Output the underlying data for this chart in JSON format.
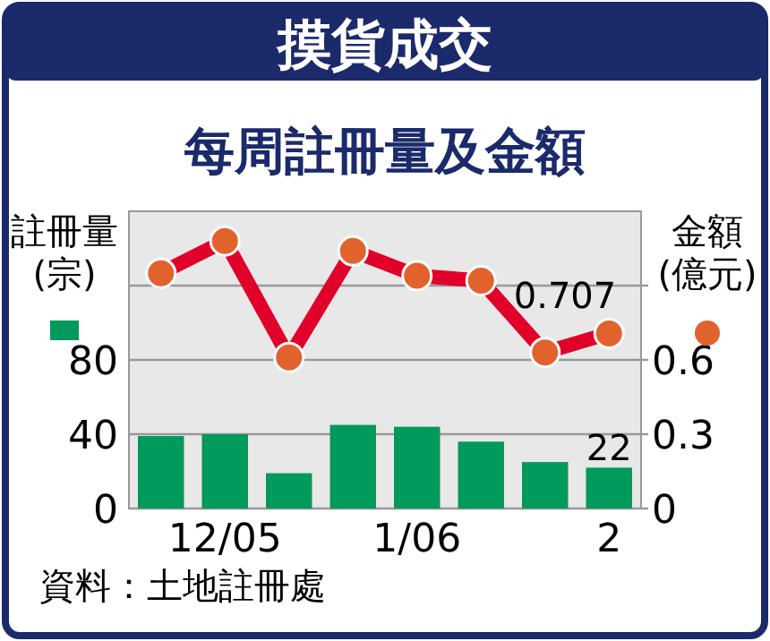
{
  "chart_data": {
    "type": "bar",
    "title": "摸貨成交",
    "subtitle": "每周註冊量及金額",
    "ylabel": "註冊量\n(宗)",
    "y2label": "金額\n(億元)",
    "categories": [
      null,
      "12/05",
      null,
      null,
      "1/06",
      null,
      null,
      "2"
    ],
    "series": [
      {
        "color": "#009a5c",
        "values": [
          39,
          40,
          19,
          45,
          44,
          36,
          25,
          22
        ],
        "value_labels": [
          null,
          null,
          null,
          null,
          null,
          null,
          null,
          "22"
        ]
      },
      {
        "type": "line",
        "axis": "y2",
        "color": "#e0002a",
        "marker": "circle",
        "values": [
          0.95,
          1.08,
          0.61,
          1.04,
          0.94,
          0.92,
          0.63,
          0.707
        ],
        "value_labels": [
          null,
          null,
          null,
          null,
          null,
          null,
          null,
          "0.707"
        ]
      }
    ],
    "ylim": [
      0,
      160
    ],
    "yticks": [
      0,
      40,
      80,
      {
        "value": 120,
        "label": null
      }
    ],
    "y2lim": [
      0,
      1.2
    ],
    "y2ticks": [
      0,
      0.3,
      0.6,
      {
        "value": 0.9,
        "label": null
      }
    ],
    "grid": "y",
    "annotations": [
      "資料：土地註冊處"
    ]
  }
}
